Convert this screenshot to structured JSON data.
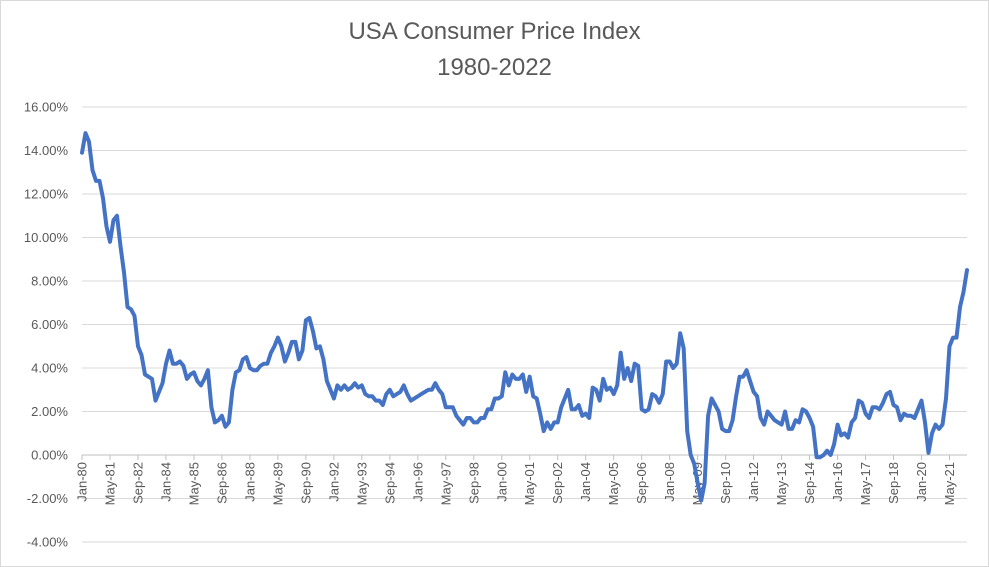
{
  "chart_data": {
    "type": "line",
    "title": "USA Consumer Price Index",
    "subtitle": "1980-2022",
    "xlabel": "",
    "ylabel": "",
    "ylim": [
      -4,
      16
    ],
    "y_ticks": [
      "-4.00%",
      "-2.00%",
      "0.00%",
      "2.00%",
      "4.00%",
      "6.00%",
      "8.00%",
      "10.00%",
      "12.00%",
      "14.00%",
      "16.00%"
    ],
    "x_ticks": [
      "Jan-80",
      "May-81",
      "Sep-82",
      "Jan-84",
      "May-85",
      "Sep-86",
      "Jan-88",
      "May-89",
      "Sep-90",
      "Jan-92",
      "May-93",
      "Sep-94",
      "Jan-96",
      "May-97",
      "Sep-98",
      "Jan-00",
      "May-01",
      "Sep-02",
      "Jan-04",
      "May-05",
      "Sep-06",
      "Jan-08",
      "May-09",
      "Sep-10",
      "Jan-12",
      "May-13",
      "Sep-14",
      "Jan-16",
      "May-17",
      "Sep-18",
      "Jan-20",
      "May-21"
    ],
    "grid": true,
    "line_color": "#4472c4",
    "series": [
      {
        "points": [
          [
            "1980-01",
            13.9
          ],
          [
            "1980-03",
            14.8
          ],
          [
            "1980-05",
            14.4
          ],
          [
            "1980-07",
            13.1
          ],
          [
            "1980-09",
            12.6
          ],
          [
            "1980-11",
            12.6
          ],
          [
            "1981-01",
            11.8
          ],
          [
            "1981-03",
            10.5
          ],
          [
            "1981-05",
            9.8
          ],
          [
            "1981-07",
            10.8
          ],
          [
            "1981-09",
            11.0
          ],
          [
            "1981-11",
            9.6
          ],
          [
            "1982-01",
            8.4
          ],
          [
            "1982-03",
            6.8
          ],
          [
            "1982-05",
            6.7
          ],
          [
            "1982-07",
            6.4
          ],
          [
            "1982-09",
            5.0
          ],
          [
            "1982-11",
            4.6
          ],
          [
            "1983-01",
            3.7
          ],
          [
            "1983-03",
            3.6
          ],
          [
            "1983-05",
            3.5
          ],
          [
            "1983-07",
            2.5
          ],
          [
            "1983-09",
            2.9
          ],
          [
            "1983-11",
            3.3
          ],
          [
            "1984-01",
            4.2
          ],
          [
            "1984-03",
            4.8
          ],
          [
            "1984-05",
            4.2
          ],
          [
            "1984-07",
            4.2
          ],
          [
            "1984-09",
            4.3
          ],
          [
            "1984-11",
            4.1
          ],
          [
            "1985-01",
            3.5
          ],
          [
            "1985-03",
            3.7
          ],
          [
            "1985-05",
            3.8
          ],
          [
            "1985-07",
            3.4
          ],
          [
            "1985-09",
            3.2
          ],
          [
            "1985-11",
            3.5
          ],
          [
            "1986-01",
            3.9
          ],
          [
            "1986-03",
            2.2
          ],
          [
            "1986-05",
            1.5
          ],
          [
            "1986-07",
            1.6
          ],
          [
            "1986-09",
            1.8
          ],
          [
            "1986-11",
            1.3
          ],
          [
            "1987-01",
            1.5
          ],
          [
            "1987-03",
            3.0
          ],
          [
            "1987-05",
            3.8
          ],
          [
            "1987-07",
            3.9
          ],
          [
            "1987-09",
            4.4
          ],
          [
            "1987-11",
            4.5
          ],
          [
            "1988-01",
            4.0
          ],
          [
            "1988-03",
            3.9
          ],
          [
            "1988-05",
            3.9
          ],
          [
            "1988-07",
            4.1
          ],
          [
            "1988-09",
            4.2
          ],
          [
            "1988-11",
            4.2
          ],
          [
            "1989-01",
            4.7
          ],
          [
            "1989-03",
            5.0
          ],
          [
            "1989-05",
            5.4
          ],
          [
            "1989-07",
            5.0
          ],
          [
            "1989-09",
            4.3
          ],
          [
            "1989-11",
            4.7
          ],
          [
            "1990-01",
            5.2
          ],
          [
            "1990-03",
            5.2
          ],
          [
            "1990-05",
            4.4
          ],
          [
            "1990-07",
            4.8
          ],
          [
            "1990-09",
            6.2
          ],
          [
            "1990-11",
            6.3
          ],
          [
            "1991-01",
            5.7
          ],
          [
            "1991-03",
            4.9
          ],
          [
            "1991-05",
            5.0
          ],
          [
            "1991-07",
            4.4
          ],
          [
            "1991-09",
            3.4
          ],
          [
            "1991-11",
            3.0
          ],
          [
            "1992-01",
            2.6
          ],
          [
            "1992-03",
            3.2
          ],
          [
            "1992-05",
            3.0
          ],
          [
            "1992-07",
            3.2
          ],
          [
            "1992-09",
            3.0
          ],
          [
            "1992-11",
            3.1
          ],
          [
            "1993-01",
            3.3
          ],
          [
            "1993-03",
            3.1
          ],
          [
            "1993-05",
            3.2
          ],
          [
            "1993-07",
            2.8
          ],
          [
            "1993-09",
            2.7
          ],
          [
            "1993-11",
            2.7
          ],
          [
            "1994-01",
            2.5
          ],
          [
            "1994-03",
            2.5
          ],
          [
            "1994-05",
            2.3
          ],
          [
            "1994-07",
            2.8
          ],
          [
            "1994-09",
            3.0
          ],
          [
            "1994-11",
            2.7
          ],
          [
            "1995-01",
            2.8
          ],
          [
            "1995-03",
            2.9
          ],
          [
            "1995-05",
            3.2
          ],
          [
            "1995-07",
            2.8
          ],
          [
            "1995-09",
            2.5
          ],
          [
            "1995-11",
            2.6
          ],
          [
            "1996-01",
            2.7
          ],
          [
            "1996-03",
            2.8
          ],
          [
            "1996-05",
            2.9
          ],
          [
            "1996-07",
            3.0
          ],
          [
            "1996-09",
            3.0
          ],
          [
            "1996-11",
            3.3
          ],
          [
            "1997-01",
            3.0
          ],
          [
            "1997-03",
            2.8
          ],
          [
            "1997-05",
            2.2
          ],
          [
            "1997-07",
            2.2
          ],
          [
            "1997-09",
            2.2
          ],
          [
            "1997-11",
            1.8
          ],
          [
            "1998-01",
            1.6
          ],
          [
            "1998-03",
            1.4
          ],
          [
            "1998-05",
            1.7
          ],
          [
            "1998-07",
            1.7
          ],
          [
            "1998-09",
            1.5
          ],
          [
            "1998-11",
            1.5
          ],
          [
            "1999-01",
            1.7
          ],
          [
            "1999-03",
            1.7
          ],
          [
            "1999-05",
            2.1
          ],
          [
            "1999-07",
            2.1
          ],
          [
            "1999-09",
            2.6
          ],
          [
            "1999-11",
            2.6
          ],
          [
            "2000-01",
            2.7
          ],
          [
            "2000-03",
            3.8
          ],
          [
            "2000-05",
            3.2
          ],
          [
            "2000-07",
            3.7
          ],
          [
            "2000-09",
            3.5
          ],
          [
            "2000-11",
            3.5
          ],
          [
            "2001-01",
            3.7
          ],
          [
            "2001-03",
            2.9
          ],
          [
            "2001-05",
            3.6
          ],
          [
            "2001-07",
            2.7
          ],
          [
            "2001-09",
            2.6
          ],
          [
            "2001-11",
            1.9
          ],
          [
            "2002-01",
            1.1
          ],
          [
            "2002-03",
            1.5
          ],
          [
            "2002-05",
            1.2
          ],
          [
            "2002-07",
            1.5
          ],
          [
            "2002-09",
            1.5
          ],
          [
            "2002-11",
            2.2
          ],
          [
            "2003-01",
            2.6
          ],
          [
            "2003-03",
            3.0
          ],
          [
            "2003-05",
            2.1
          ],
          [
            "2003-07",
            2.1
          ],
          [
            "2003-09",
            2.3
          ],
          [
            "2003-11",
            1.8
          ],
          [
            "2004-01",
            1.9
          ],
          [
            "2004-03",
            1.7
          ],
          [
            "2004-05",
            3.1
          ],
          [
            "2004-07",
            3.0
          ],
          [
            "2004-09",
            2.5
          ],
          [
            "2004-11",
            3.5
          ],
          [
            "2005-01",
            3.0
          ],
          [
            "2005-03",
            3.1
          ],
          [
            "2005-05",
            2.8
          ],
          [
            "2005-07",
            3.2
          ],
          [
            "2005-09",
            4.7
          ],
          [
            "2005-11",
            3.5
          ],
          [
            "2006-01",
            4.0
          ],
          [
            "2006-03",
            3.4
          ],
          [
            "2006-05",
            4.2
          ],
          [
            "2006-07",
            4.1
          ],
          [
            "2006-09",
            2.1
          ],
          [
            "2006-11",
            2.0
          ],
          [
            "2007-01",
            2.1
          ],
          [
            "2007-03",
            2.8
          ],
          [
            "2007-05",
            2.7
          ],
          [
            "2007-07",
            2.4
          ],
          [
            "2007-09",
            2.8
          ],
          [
            "2007-11",
            4.3
          ],
          [
            "2008-01",
            4.3
          ],
          [
            "2008-03",
            4.0
          ],
          [
            "2008-05",
            4.2
          ],
          [
            "2008-07",
            5.6
          ],
          [
            "2008-09",
            4.9
          ],
          [
            "2008-11",
            1.1
          ],
          [
            "2009-01",
            0.0
          ],
          [
            "2009-03",
            -0.4
          ],
          [
            "2009-05",
            -1.3
          ],
          [
            "2009-07",
            -2.1
          ],
          [
            "2009-09",
            -1.3
          ],
          [
            "2009-11",
            1.8
          ],
          [
            "2010-01",
            2.6
          ],
          [
            "2010-03",
            2.3
          ],
          [
            "2010-05",
            2.0
          ],
          [
            "2010-07",
            1.2
          ],
          [
            "2010-09",
            1.1
          ],
          [
            "2010-11",
            1.1
          ],
          [
            "2011-01",
            1.6
          ],
          [
            "2011-03",
            2.7
          ],
          [
            "2011-05",
            3.6
          ],
          [
            "2011-07",
            3.6
          ],
          [
            "2011-09",
            3.9
          ],
          [
            "2011-11",
            3.4
          ],
          [
            "2012-01",
            2.9
          ],
          [
            "2012-03",
            2.7
          ],
          [
            "2012-05",
            1.7
          ],
          [
            "2012-07",
            1.4
          ],
          [
            "2012-09",
            2.0
          ],
          [
            "2012-11",
            1.8
          ],
          [
            "2013-01",
            1.6
          ],
          [
            "2013-03",
            1.5
          ],
          [
            "2013-05",
            1.4
          ],
          [
            "2013-07",
            2.0
          ],
          [
            "2013-09",
            1.2
          ],
          [
            "2013-11",
            1.2
          ],
          [
            "2014-01",
            1.6
          ],
          [
            "2014-03",
            1.5
          ],
          [
            "2014-05",
            2.1
          ],
          [
            "2014-07",
            2.0
          ],
          [
            "2014-09",
            1.7
          ],
          [
            "2014-11",
            1.3
          ],
          [
            "2015-01",
            -0.1
          ],
          [
            "2015-03",
            -0.1
          ],
          [
            "2015-05",
            0.0
          ],
          [
            "2015-07",
            0.2
          ],
          [
            "2015-09",
            0.0
          ],
          [
            "2015-11",
            0.5
          ],
          [
            "2016-01",
            1.4
          ],
          [
            "2016-03",
            0.9
          ],
          [
            "2016-05",
            1.0
          ],
          [
            "2016-07",
            0.8
          ],
          [
            "2016-09",
            1.5
          ],
          [
            "2016-11",
            1.7
          ],
          [
            "2017-01",
            2.5
          ],
          [
            "2017-03",
            2.4
          ],
          [
            "2017-05",
            1.9
          ],
          [
            "2017-07",
            1.7
          ],
          [
            "2017-09",
            2.2
          ],
          [
            "2017-11",
            2.2
          ],
          [
            "2018-01",
            2.1
          ],
          [
            "2018-03",
            2.4
          ],
          [
            "2018-05",
            2.8
          ],
          [
            "2018-07",
            2.9
          ],
          [
            "2018-09",
            2.3
          ],
          [
            "2018-11",
            2.2
          ],
          [
            "2019-01",
            1.6
          ],
          [
            "2019-03",
            1.9
          ],
          [
            "2019-05",
            1.8
          ],
          [
            "2019-07",
            1.8
          ],
          [
            "2019-09",
            1.7
          ],
          [
            "2019-11",
            2.1
          ],
          [
            "2020-01",
            2.5
          ],
          [
            "2020-03",
            1.5
          ],
          [
            "2020-05",
            0.1
          ],
          [
            "2020-07",
            1.0
          ],
          [
            "2020-09",
            1.4
          ],
          [
            "2020-11",
            1.2
          ],
          [
            "2021-01",
            1.4
          ],
          [
            "2021-03",
            2.6
          ],
          [
            "2021-05",
            5.0
          ],
          [
            "2021-07",
            5.4
          ],
          [
            "2021-09",
            5.4
          ],
          [
            "2021-11",
            6.8
          ],
          [
            "2022-01",
            7.5
          ],
          [
            "2022-03",
            8.5
          ]
        ]
      }
    ]
  }
}
